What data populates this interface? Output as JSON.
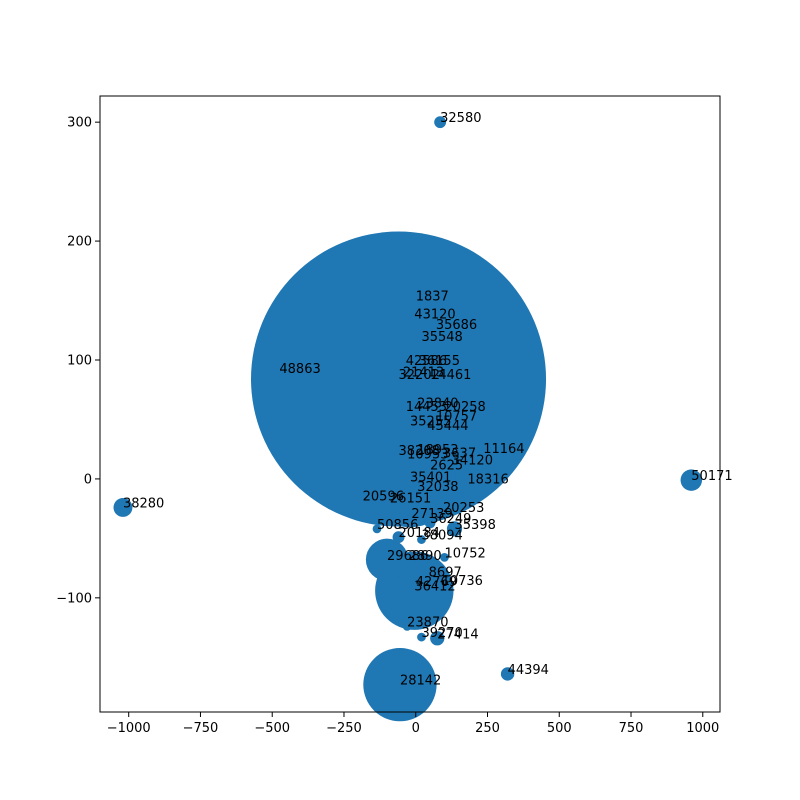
{
  "chart_data": {
    "type": "scatter",
    "title": "",
    "xlabel": "",
    "ylabel": "",
    "xlim": [
      -1100,
      1060
    ],
    "ylim": [
      -196,
      322
    ],
    "xticks": [
      -1000,
      -750,
      -500,
      -250,
      0,
      250,
      500,
      750,
      1000
    ],
    "yticks": [
      -100,
      0,
      100,
      200,
      300
    ],
    "grid": false,
    "marker_color": "#1f77b4",
    "points": [
      {
        "label": "32580",
        "x": 85,
        "y": 300,
        "size": 55
      },
      {
        "label": "1837",
        "x": 0,
        "y": 150,
        "size": 30
      },
      {
        "label": "43120",
        "x": -5,
        "y": 135,
        "size": 30
      },
      {
        "label": "35686",
        "x": 70,
        "y": 126,
        "size": 30
      },
      {
        "label": "35548",
        "x": 20,
        "y": 116,
        "size": 30
      },
      {
        "label": "48863",
        "x": -475,
        "y": 89,
        "size": 28
      },
      {
        "label": "42586",
        "x": -35,
        "y": 96,
        "size": 30
      },
      {
        "label": "36155",
        "x": 10,
        "y": 96,
        "size": 30
      },
      {
        "label": "21413",
        "x": -45,
        "y": 86,
        "size": 30
      },
      {
        "label": "14461",
        "x": 50,
        "y": 84,
        "size": 40
      },
      {
        "label": "32202",
        "x": -60,
        "y": 84,
        "size": 34000
      },
      {
        "label": "23840",
        "x": 5,
        "y": 60,
        "size": 30
      },
      {
        "label": "14453",
        "x": -35,
        "y": 57,
        "size": 30
      },
      {
        "label": "20258",
        "x": 100,
        "y": 57,
        "size": 30
      },
      {
        "label": "10757",
        "x": 70,
        "y": 49,
        "size": 30
      },
      {
        "label": "35255",
        "x": -20,
        "y": 45,
        "size": 30
      },
      {
        "label": "45444",
        "x": 40,
        "y": 41,
        "size": 30
      },
      {
        "label": "11164",
        "x": 235,
        "y": 22,
        "size": 25
      },
      {
        "label": "38208",
        "x": -60,
        "y": 20,
        "size": 30
      },
      {
        "label": "18953",
        "x": 5,
        "y": 21,
        "size": 30
      },
      {
        "label": "10953",
        "x": -30,
        "y": 17,
        "size": 30
      },
      {
        "label": "3637",
        "x": 95,
        "y": 18,
        "size": 30
      },
      {
        "label": "34120",
        "x": 125,
        "y": 12,
        "size": 30
      },
      {
        "label": "2625",
        "x": 50,
        "y": 8,
        "size": 30
      },
      {
        "label": "50171",
        "x": 960,
        "y": -1,
        "size": 180
      },
      {
        "label": "35401",
        "x": -20,
        "y": -2,
        "size": 3300
      },
      {
        "label": "18316",
        "x": 180,
        "y": -4,
        "size": 200
      },
      {
        "label": "32038",
        "x": 5,
        "y": -10,
        "size": 30
      },
      {
        "label": "38280",
        "x": -1020,
        "y": -24,
        "size": 140
      },
      {
        "label": "20596",
        "x": -185,
        "y": -18,
        "size": 80
      },
      {
        "label": "26151",
        "x": -90,
        "y": -20,
        "size": 30
      },
      {
        "label": "20253",
        "x": 95,
        "y": -28,
        "size": 30
      },
      {
        "label": "27139",
        "x": -15,
        "y": -33,
        "size": 30
      },
      {
        "label": "36249",
        "x": 50,
        "y": -37,
        "size": 45
      },
      {
        "label": "35398",
        "x": 135,
        "y": -42,
        "size": 90
      },
      {
        "label": "50856",
        "x": -135,
        "y": -42,
        "size": 30
      },
      {
        "label": "20184",
        "x": -60,
        "y": -49,
        "size": 55
      },
      {
        "label": "38094",
        "x": 20,
        "y": -51,
        "size": 30
      },
      {
        "label": "29686",
        "x": -100,
        "y": -68,
        "size": 700
      },
      {
        "label": "2890",
        "x": -25,
        "y": -68,
        "size": 80
      },
      {
        "label": "10752",
        "x": 100,
        "y": -66,
        "size": 30
      },
      {
        "label": "8697",
        "x": 45,
        "y": -82,
        "size": 55
      },
      {
        "label": "42769",
        "x": 0,
        "y": -90,
        "size": 30
      },
      {
        "label": "36412",
        "x": -5,
        "y": -94,
        "size": 2400
      },
      {
        "label": "10736",
        "x": 90,
        "y": -89,
        "size": 30
      },
      {
        "label": "23870",
        "x": -30,
        "y": -124,
        "size": 30
      },
      {
        "label": "39270",
        "x": 20,
        "y": -133,
        "size": 30
      },
      {
        "label": "27414",
        "x": 75,
        "y": -134,
        "size": 80
      },
      {
        "label": "44394",
        "x": 320,
        "y": -164,
        "size": 70
      },
      {
        "label": "28142",
        "x": -55,
        "y": -173,
        "size": 2100
      }
    ]
  }
}
